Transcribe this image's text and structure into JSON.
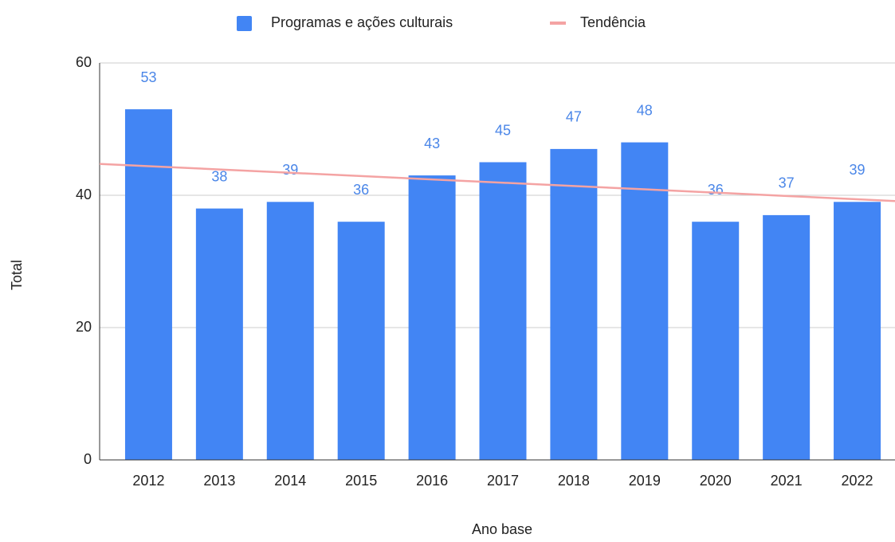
{
  "chart_data": {
    "type": "bar",
    "categories": [
      "2012",
      "2013",
      "2014",
      "2015",
      "2016",
      "2017",
      "2018",
      "2019",
      "2020",
      "2021",
      "2022"
    ],
    "series": [
      {
        "name": "Programas e ações culturais",
        "color": "#4285f4",
        "values": [
          53,
          38,
          39,
          36,
          43,
          45,
          47,
          48,
          36,
          37,
          39
        ]
      },
      {
        "name": "Tendência",
        "type": "line",
        "color": "#f4a3a3",
        "values": [
          44.4,
          43.9,
          43.4,
          42.9,
          42.4,
          41.9,
          41.4,
          40.9,
          40.4,
          39.9,
          39.4
        ]
      }
    ],
    "xlabel": "Ano base",
    "ylabel": "Total",
    "ylim": [
      0,
      60
    ],
    "yticks": [
      0,
      20,
      40,
      60
    ],
    "grid": true,
    "legend": "top"
  }
}
